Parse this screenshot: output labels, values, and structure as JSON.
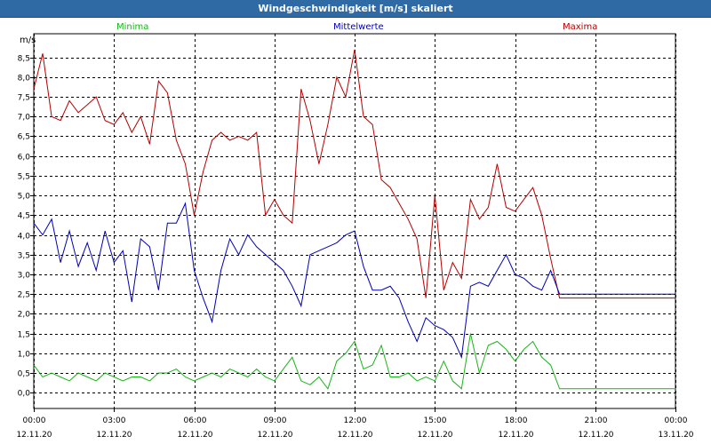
{
  "window": {
    "title": "Windgeschwindigkeit [m/s] skaliert"
  },
  "legend": {
    "minima": "Minima",
    "mittelwerte": "Mittelwerte",
    "maxima": "Maxima"
  },
  "colors": {
    "titlebar": "#2f6aa5",
    "minima": "#19b419",
    "mittelwerte": "#0000b4",
    "maxima": "#b40000",
    "grid": "#000000"
  },
  "chart_data": {
    "type": "line",
    "title": "Windgeschwindigkeit [m/s] skaliert",
    "ylabel": "m/s",
    "ylim": [
      -0.4,
      9.1
    ],
    "yticks": [
      0.0,
      0.5,
      1.0,
      1.5,
      2.0,
      2.5,
      3.0,
      3.5,
      4.0,
      4.5,
      5.0,
      5.5,
      6.0,
      6.5,
      7.0,
      7.5,
      8.0,
      8.5
    ],
    "ytick_labels": [
      "0,0",
      "0,5",
      "1,0",
      "1,5",
      "2,0",
      "2,5",
      "3,0",
      "3,5",
      "4,0",
      "4,5",
      "5,0",
      "5,5",
      "6,0",
      "6,5",
      "7,0",
      "7,5",
      "8,0",
      "8,5"
    ],
    "xlim": [
      "12.11.20 00:00",
      "13.11.20 00:00"
    ],
    "xticks": [
      {
        "time": "00:00",
        "date": "12.11.20"
      },
      {
        "time": "03:00",
        "date": "12.11.20"
      },
      {
        "time": "06:00",
        "date": "12.11.20"
      },
      {
        "time": "09:00",
        "date": "12.11.20"
      },
      {
        "time": "12:00",
        "date": "12.11.20"
      },
      {
        "time": "15:00",
        "date": "12.11.20"
      },
      {
        "time": "18:00",
        "date": "12.11.20"
      },
      {
        "time": "21:00",
        "date": "12.11.20"
      },
      {
        "time": "00:00",
        "date": "13.11.20"
      }
    ],
    "grid": true,
    "legend_position": "top",
    "series": [
      {
        "name": "Maxima",
        "color": "#b40000",
        "x": [
          "00:00",
          "00:20",
          "00:40",
          "01:00",
          "01:20",
          "01:40",
          "02:00",
          "02:20",
          "02:40",
          "03:00",
          "03:20",
          "03:40",
          "04:00",
          "04:20",
          "04:40",
          "05:00",
          "05:20",
          "05:40",
          "06:00",
          "06:20",
          "06:40",
          "07:00",
          "07:20",
          "07:40",
          "08:00",
          "08:20",
          "08:40",
          "09:00",
          "09:20",
          "09:40",
          "10:00",
          "10:20",
          "10:40",
          "11:00",
          "11:20",
          "11:40",
          "12:00",
          "12:20",
          "12:40",
          "13:00",
          "13:20",
          "13:40",
          "14:00",
          "14:20",
          "14:40",
          "15:00",
          "15:20",
          "15:40",
          "16:00",
          "16:20",
          "16:40",
          "17:00",
          "17:20",
          "17:40",
          "18:00",
          "18:20",
          "18:40",
          "19:00",
          "19:20",
          "19:40",
          "20:00",
          "20:20",
          "20:40",
          "21:00",
          "21:20",
          "21:40",
          "22:00",
          "22:20",
          "22:40",
          "23:00",
          "23:20",
          "23:40",
          "24:00"
        ],
        "y": [
          7.7,
          8.6,
          7.0,
          6.9,
          7.4,
          7.1,
          7.3,
          7.5,
          6.9,
          6.8,
          7.1,
          6.6,
          7.0,
          6.3,
          7.9,
          7.6,
          6.4,
          5.8,
          4.5,
          5.6,
          6.4,
          6.6,
          6.4,
          6.5,
          6.4,
          6.6,
          4.5,
          4.9,
          4.5,
          4.3,
          7.7,
          6.9,
          5.8,
          6.8,
          8.0,
          7.5,
          8.7,
          7.0,
          6.8,
          5.4,
          5.2,
          4.8,
          4.4,
          3.9,
          2.4,
          5.0,
          2.6,
          3.3,
          2.9,
          4.9,
          4.4,
          4.7,
          5.8,
          4.7,
          4.6,
          4.9,
          5.2,
          4.5,
          3.4,
          2.4,
          2.4,
          2.4,
          2.4,
          2.4,
          2.4,
          2.4,
          2.4,
          2.4,
          2.4,
          2.4,
          2.4,
          2.4,
          2.4
        ]
      },
      {
        "name": "Mittelwerte",
        "color": "#0000b4",
        "x": [
          "00:00",
          "00:20",
          "00:40",
          "01:00",
          "01:20",
          "01:40",
          "02:00",
          "02:20",
          "02:40",
          "03:00",
          "03:20",
          "03:40",
          "04:00",
          "04:20",
          "04:40",
          "05:00",
          "05:20",
          "05:40",
          "06:00",
          "06:20",
          "06:40",
          "07:00",
          "07:20",
          "07:40",
          "08:00",
          "08:20",
          "08:40",
          "09:00",
          "09:20",
          "09:40",
          "10:00",
          "10:20",
          "10:40",
          "11:00",
          "11:20",
          "11:40",
          "12:00",
          "12:20",
          "12:40",
          "13:00",
          "13:20",
          "13:40",
          "14:00",
          "14:20",
          "14:40",
          "15:00",
          "15:20",
          "15:40",
          "16:00",
          "16:20",
          "16:40",
          "17:00",
          "17:20",
          "17:40",
          "18:00",
          "18:20",
          "18:40",
          "19:00",
          "19:20",
          "19:40",
          "20:00",
          "20:20",
          "20:40",
          "21:00",
          "21:20",
          "21:40",
          "22:00",
          "22:20",
          "22:40",
          "23:00",
          "23:20",
          "23:40",
          "24:00"
        ],
        "y": [
          4.3,
          4.0,
          4.4,
          3.3,
          4.1,
          3.2,
          3.8,
          3.1,
          4.1,
          3.3,
          3.6,
          2.3,
          3.9,
          3.7,
          2.6,
          4.3,
          4.3,
          4.8,
          3.1,
          2.4,
          1.8,
          3.1,
          3.9,
          3.5,
          4.0,
          3.7,
          3.5,
          3.3,
          3.1,
          2.7,
          2.2,
          3.5,
          3.6,
          3.7,
          3.8,
          4.0,
          4.1,
          3.2,
          2.6,
          2.6,
          2.7,
          2.4,
          1.8,
          1.3,
          1.9,
          1.7,
          1.6,
          1.4,
          0.9,
          2.7,
          2.8,
          2.7,
          3.1,
          3.5,
          3.0,
          2.9,
          2.7,
          2.6,
          3.1,
          2.5,
          2.5,
          2.5,
          2.5,
          2.5,
          2.5,
          2.5,
          2.5,
          2.5,
          2.5,
          2.5,
          2.5,
          2.5,
          2.5
        ]
      },
      {
        "name": "Minima",
        "color": "#19b419",
        "x": [
          "00:00",
          "00:20",
          "00:40",
          "01:00",
          "01:20",
          "01:40",
          "02:00",
          "02:20",
          "02:40",
          "03:00",
          "03:20",
          "03:40",
          "04:00",
          "04:20",
          "04:40",
          "05:00",
          "05:20",
          "05:40",
          "06:00",
          "06:20",
          "06:40",
          "07:00",
          "07:20",
          "07:40",
          "08:00",
          "08:20",
          "08:40",
          "09:00",
          "09:20",
          "09:40",
          "10:00",
          "10:20",
          "10:40",
          "11:00",
          "11:20",
          "11:40",
          "12:00",
          "12:20",
          "12:40",
          "13:00",
          "13:20",
          "13:40",
          "14:00",
          "14:20",
          "14:40",
          "15:00",
          "15:20",
          "15:40",
          "16:00",
          "16:20",
          "16:40",
          "17:00",
          "17:20",
          "17:40",
          "18:00",
          "18:20",
          "18:40",
          "19:00",
          "19:20",
          "19:40",
          "20:00",
          "20:20",
          "20:40",
          "21:00",
          "21:20",
          "21:40",
          "22:00",
          "22:20",
          "22:40",
          "23:00",
          "23:20",
          "23:40",
          "24:00"
        ],
        "y": [
          0.7,
          0.4,
          0.5,
          0.4,
          0.3,
          0.5,
          0.4,
          0.3,
          0.5,
          0.4,
          0.3,
          0.4,
          0.4,
          0.3,
          0.5,
          0.5,
          0.6,
          0.4,
          0.3,
          0.4,
          0.5,
          0.4,
          0.6,
          0.5,
          0.4,
          0.6,
          0.4,
          0.3,
          0.6,
          0.9,
          0.3,
          0.2,
          0.4,
          0.1,
          0.8,
          1.0,
          1.3,
          0.6,
          0.7,
          1.2,
          0.4,
          0.4,
          0.5,
          0.3,
          0.4,
          0.3,
          0.8,
          0.3,
          0.1,
          1.5,
          0.5,
          1.2,
          1.3,
          1.1,
          0.8,
          1.1,
          1.3,
          0.9,
          0.7,
          0.1,
          0.1,
          0.1,
          0.1,
          0.1,
          0.1,
          0.1,
          0.1,
          0.1,
          0.1,
          0.1,
          0.1,
          0.1,
          0.1
        ]
      }
    ]
  }
}
